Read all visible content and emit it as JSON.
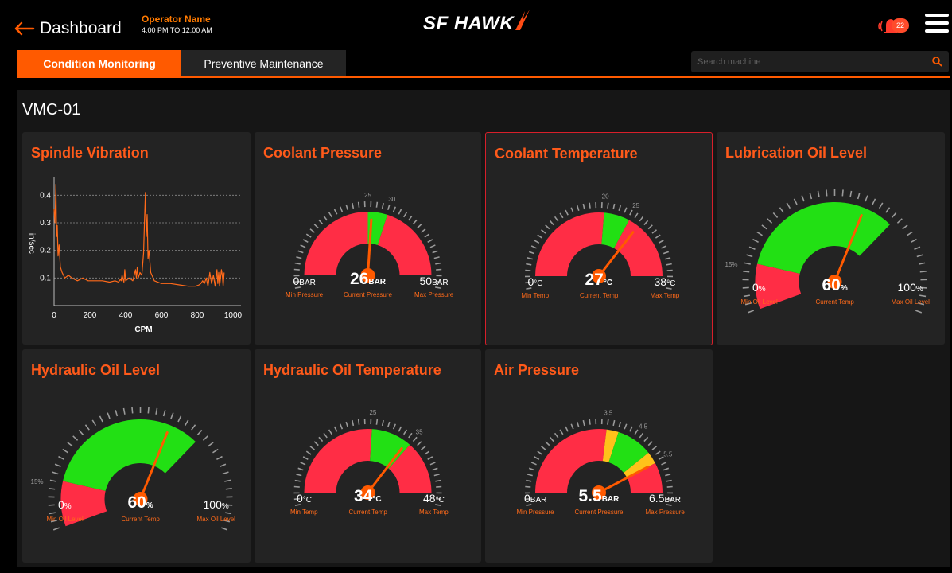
{
  "header": {
    "back_label": "Dashboard",
    "operator_name": "Operator Name",
    "operator_shift": "4:00 PM TO 12:00 AM",
    "logo_text": "SF HAWK",
    "notification_count": "22",
    "accent_color": "#ff5a00"
  },
  "tabs": [
    {
      "label": "Condition Monitoring",
      "active": true
    },
    {
      "label": "Preventive Maintenance",
      "active": false
    }
  ],
  "search": {
    "placeholder": "Search machine",
    "value": ""
  },
  "machine": {
    "name": "VMC-01"
  },
  "chart_data": {
    "type": "line",
    "title": "Spindle Vibration",
    "xlabel": "CPM",
    "ylabel": "in/sec",
    "xlim": [
      0,
      1000
    ],
    "ylim": [
      0,
      0.45
    ],
    "xticks": [
      "0",
      "200",
      "400",
      "600",
      "800",
      "1000"
    ],
    "yticks": [
      "0.1",
      "0.2",
      "0.3",
      "0.4"
    ],
    "grid": "horizontal dashed",
    "series": [
      {
        "color": "#ff6a1a",
        "x": [
          0,
          5,
          10,
          14,
          18,
          22,
          28,
          35,
          45,
          60,
          80,
          100,
          130,
          160,
          190,
          230,
          270,
          310,
          340,
          360,
          370,
          375,
          380,
          390,
          395,
          400,
          420,
          440,
          455,
          460,
          465,
          470,
          480,
          490,
          500,
          505,
          510,
          515,
          520,
          525,
          530,
          540,
          560,
          600,
          650,
          700,
          750,
          790,
          810,
          820,
          830,
          840,
          850,
          860,
          870,
          880,
          890,
          900,
          910,
          915,
          920,
          925,
          930,
          935,
          940,
          945,
          950
        ],
        "y": [
          0.35,
          0.3,
          0.44,
          0.25,
          0.29,
          0.18,
          0.22,
          0.14,
          0.12,
          0.1,
          0.11,
          0.1,
          0.09,
          0.1,
          0.09,
          0.09,
          0.09,
          0.085,
          0.09,
          0.085,
          0.095,
          0.09,
          0.11,
          0.085,
          0.13,
          0.09,
          0.1,
          0.09,
          0.13,
          0.1,
          0.14,
          0.1,
          0.12,
          0.11,
          0.19,
          0.3,
          0.41,
          0.25,
          0.33,
          0.17,
          0.2,
          0.12,
          0.09,
          0.08,
          0.08,
          0.075,
          0.07,
          0.07,
          0.075,
          0.08,
          0.09,
          0.08,
          0.1,
          0.07,
          0.12,
          0.08,
          0.11,
          0.07,
          0.13,
          0.08,
          0.12,
          0.07,
          0.1,
          0.13,
          0.11,
          0.07,
          0.12
        ]
      }
    ]
  },
  "gauges": [
    {
      "id": "coolant-pressure",
      "title": "Coolant Pressure",
      "style": "band",
      "min": 0,
      "max": 50,
      "value": 26,
      "zones": [
        {
          "from": 0,
          "to": 25,
          "color": "#ff2d45"
        },
        {
          "from": 25,
          "to": 30,
          "color": "#22e014"
        },
        {
          "from": 30,
          "to": 50,
          "color": "#ff2d45"
        }
      ],
      "tick_labels": [
        "25",
        "30"
      ],
      "min_text": "0",
      "min_unit": "BAR",
      "cur_text": "26",
      "cur_unit": "BAR",
      "max_text": "50",
      "max_unit": "BAR",
      "min_label": "Min Pressure",
      "cur_label": "Current Pressure",
      "max_label": "Max Pressure"
    },
    {
      "id": "coolant-temperature",
      "title": "Coolant Temperature",
      "style": "band",
      "min": 0,
      "max": 38,
      "value": 27,
      "zones": [
        {
          "from": 0,
          "to": 20,
          "color": "#ff2d45"
        },
        {
          "from": 20,
          "to": 25,
          "color": "#22e014"
        },
        {
          "from": 25,
          "to": 38,
          "color": "#ff2d45"
        }
      ],
      "tick_labels": [
        "20",
        "25"
      ],
      "min_text": "0",
      "min_unit": "°C",
      "cur_text": "27",
      "cur_unit": "°C",
      "max_text": "38",
      "max_unit": "°C",
      "min_label": "Min Temp",
      "cur_label": "Current Temp",
      "max_label": "Max Temp"
    },
    {
      "id": "lubrication-oil-level",
      "title": "Lubrication Oil Level",
      "style": "level",
      "min": 0,
      "max": 100,
      "value": 60,
      "zones": [
        {
          "from": 0,
          "to": 15,
          "color": "#ff2d45"
        },
        {
          "from": 15,
          "to": 70,
          "color": "#22e014"
        }
      ],
      "tick_labels": [
        "15%"
      ],
      "min_text": "0",
      "min_unit": "%",
      "cur_text": "60",
      "cur_unit": "%",
      "max_text": "100",
      "max_unit": "%",
      "min_label": "Min Oil Level",
      "cur_label": "Current Temp",
      "max_label": "Max Oil Level"
    },
    {
      "id": "hydraulic-oil-level",
      "title": "Hydraulic Oil Level",
      "style": "level",
      "min": 0,
      "max": 100,
      "value": 60,
      "zones": [
        {
          "from": 0,
          "to": 15,
          "color": "#ff2d45"
        },
        {
          "from": 15,
          "to": 70,
          "color": "#22e014"
        }
      ],
      "tick_labels": [
        "15%"
      ],
      "min_text": "0",
      "min_unit": "%",
      "cur_text": "60",
      "cur_unit": "%",
      "max_text": "100",
      "max_unit": "%",
      "min_label": "Min Oil Level",
      "cur_label": "Current Temp",
      "max_label": "Max Oil Level"
    },
    {
      "id": "hydraulic-oil-temperature",
      "title": "Hydraulic Oil Temperature",
      "style": "band",
      "min": 0,
      "max": 48,
      "value": 34,
      "zones": [
        {
          "from": 0,
          "to": 25,
          "color": "#ff2d45"
        },
        {
          "from": 25,
          "to": 35,
          "color": "#22e014"
        },
        {
          "from": 35,
          "to": 48,
          "color": "#ff2d45"
        }
      ],
      "tick_labels": [
        "25",
        "35"
      ],
      "min_text": "0",
      "min_unit": "°C",
      "cur_text": "34",
      "cur_unit": "°C",
      "max_text": "48",
      "max_unit": "°C",
      "min_label": "Min Temp",
      "cur_label": "Current Temp",
      "max_label": "Max Temp"
    },
    {
      "id": "air-pressure",
      "title": "Air Pressure",
      "style": "band",
      "min": 0,
      "max": 6.5,
      "value": 5.5,
      "zones": [
        {
          "from": 0,
          "to": 3.5,
          "color": "#ff2d45"
        },
        {
          "from": 3.5,
          "to": 3.9,
          "color": "#ffc21a"
        },
        {
          "from": 3.9,
          "to": 5.1,
          "color": "#22e014"
        },
        {
          "from": 5.1,
          "to": 5.5,
          "color": "#ffc21a"
        },
        {
          "from": 5.5,
          "to": 6.5,
          "color": "#ff2d45"
        }
      ],
      "tick_labels": [
        "3.5",
        "4.5",
        "5.5"
      ],
      "min_text": "0",
      "min_unit": "BAR",
      "cur_text": "5.5",
      "cur_unit": "BAR",
      "max_text": "6.5",
      "max_unit": "BAR",
      "min_label": "Min Pressure",
      "cur_label": "Current Pressure",
      "max_label": "Max Pressure"
    }
  ]
}
